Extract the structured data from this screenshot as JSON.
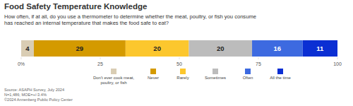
{
  "chart_data": {
    "type": "bar",
    "orientation": "horizontal",
    "stacked": true,
    "data_labels": true,
    "grid": false,
    "legend": "bottom",
    "title": "Food Safety Temperature Knowledge",
    "subtitle": [
      "How often, if at all, do you use a thermometer to determine whether the meat, poultry, or fish you consume",
      "has reached an internal temperature that makes the food safe to eat?"
    ],
    "annotations": [
      "Source: ASAPH Survey, July 2024",
      "N=1,486; MOE=+/-3.4%",
      "©2024 Annenberg Public Policy Center"
    ],
    "categories": [
      null
    ],
    "series": [
      {
        "name": "Don't ever cook meat, poultry, or fish",
        "color": "#d9cdb4",
        "values": [
          4
        ]
      },
      {
        "name": "Never",
        "color": "#d49a00",
        "values": [
          29
        ]
      },
      {
        "name": "Rarely",
        "color": "#fcc72e",
        "values": [
          20
        ]
      },
      {
        "name": "Sometimes",
        "color": "#bcbcbc",
        "values": [
          20
        ]
      },
      {
        "name": "Often",
        "color": "#3d6ae0",
        "values": [
          16
        ]
      },
      {
        "name": "All the time",
        "color": "#0b2fd3",
        "values": [
          11
        ]
      }
    ],
    "xlim": [
      0,
      100
    ],
    "xticks": [
      {
        "value": 0,
        "label": "0%"
      },
      25,
      50,
      75,
      100
    ]
  }
}
